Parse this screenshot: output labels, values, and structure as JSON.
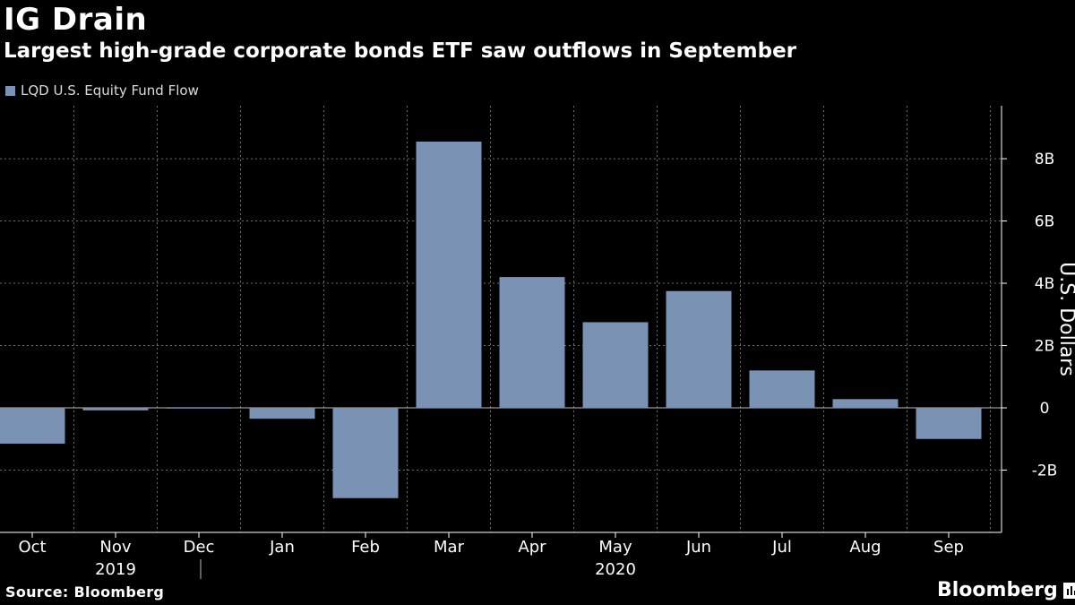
{
  "header": {
    "title": "IG Drain",
    "subtitle": "Largest high-grade corporate bonds ETF saw outflows in September"
  },
  "legend": {
    "label": "LQD U.S. Equity Fund Flow",
    "color": "#7a92b4"
  },
  "footer": {
    "source": "Source: Bloomberg",
    "brand": "Bloomberg"
  },
  "chart_data": {
    "type": "bar",
    "title": "IG Drain",
    "subtitle": "Largest high-grade corporate bonds ETF saw outflows in September",
    "categories": [
      "Oct",
      "Nov",
      "Dec",
      "Jan",
      "Feb",
      "Mar",
      "Apr",
      "May",
      "Jun",
      "Jul",
      "Aug",
      "Sep"
    ],
    "year_labels": [
      {
        "label": "2019",
        "under": "Nov"
      },
      {
        "label": "2020",
        "under": "May"
      }
    ],
    "series": [
      {
        "name": "LQD U.S. Equity Fund Flow",
        "color": "#7a92b4",
        "values": [
          -1.15,
          -0.08,
          0.02,
          -0.35,
          -2.9,
          8.55,
          4.2,
          2.75,
          3.75,
          1.2,
          0.28,
          -1.0
        ]
      }
    ],
    "yticks": [
      8,
      6,
      4,
      2,
      0,
      -2
    ],
    "ytick_labels": [
      "8B",
      "6B",
      "4B",
      "2B",
      "0",
      "-2B"
    ],
    "ylim": [
      -4,
      9.7
    ],
    "xlabel": "",
    "ylabel": "U.S. Dollars",
    "y_axis_side": "right",
    "grid": true
  }
}
